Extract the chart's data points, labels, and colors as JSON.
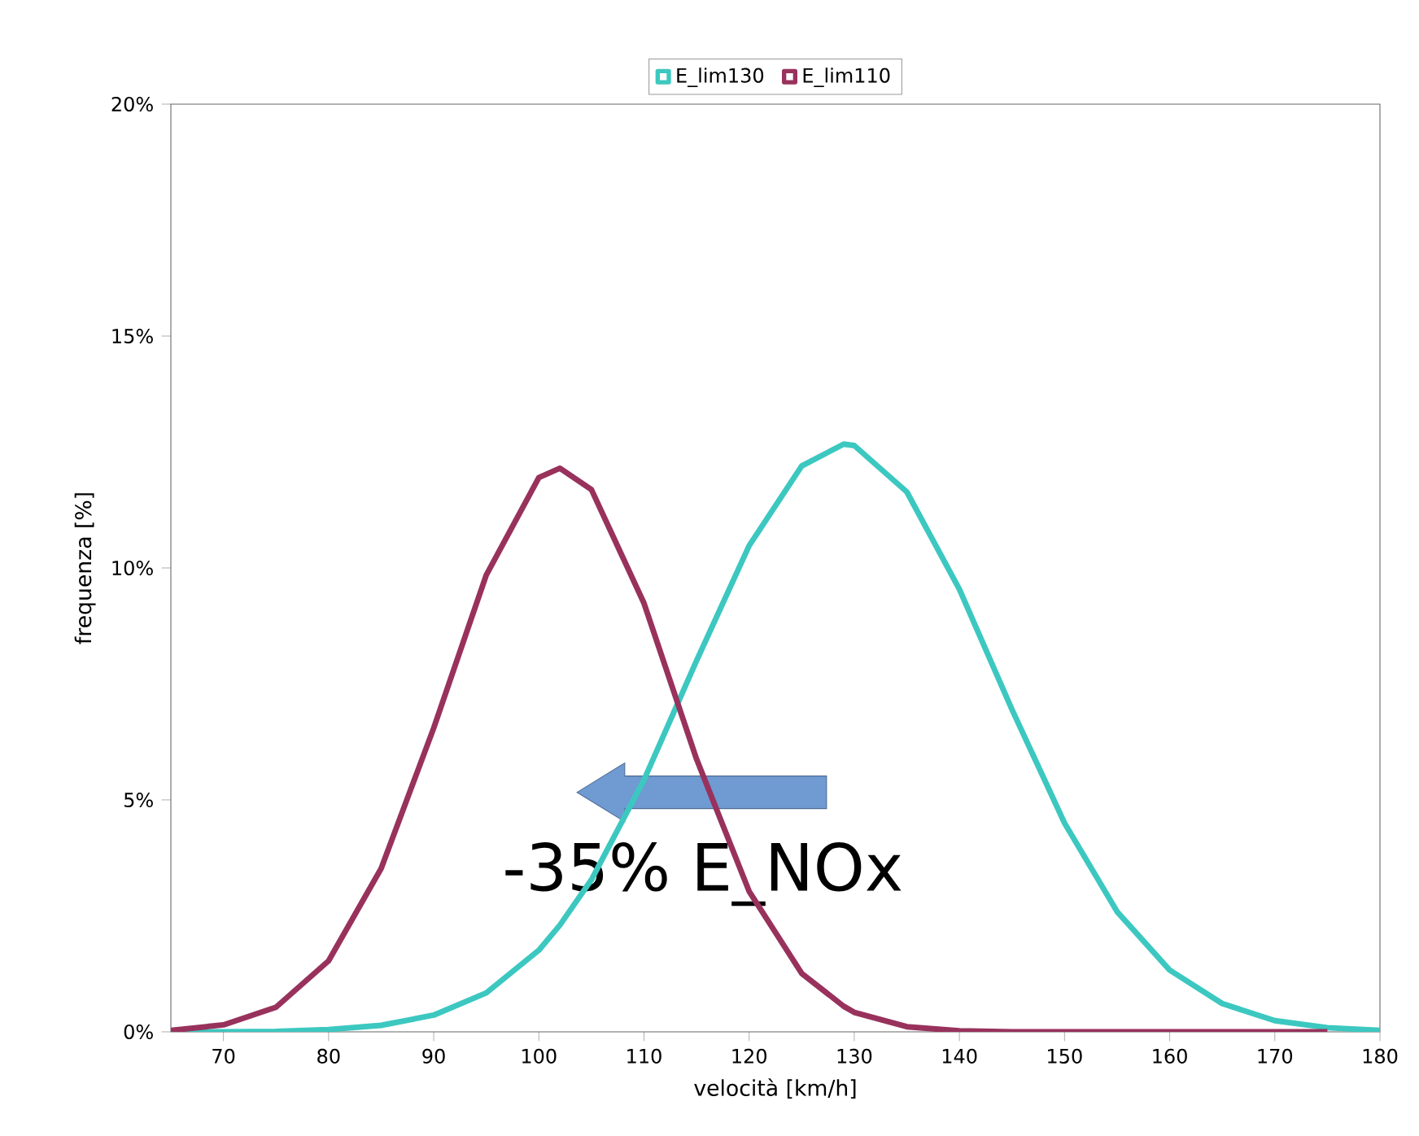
{
  "chart_data": {
    "type": "line",
    "xlabel": "velocità [km/h]",
    "ylabel": "frequenza [%]",
    "x": [
      65,
      70,
      75,
      80,
      85,
      90,
      95,
      100,
      102,
      105,
      110,
      115,
      120,
      125,
      129,
      130,
      135,
      140,
      145,
      150,
      155,
      160,
      165,
      170,
      175,
      180
    ],
    "series": [
      {
        "name": "E_lim130",
        "color": "#3cc8c0",
        "values": [
          0,
          0,
          0.01,
          0.05,
          0.14,
          0.36,
          0.84,
          1.76,
          2.3,
          3.28,
          5.43,
          8.0,
          10.48,
          12.2,
          12.67,
          12.64,
          11.64,
          9.54,
          6.95,
          4.5,
          2.59,
          1.33,
          0.61,
          0.24,
          0.09,
          0.03
        ]
      },
      {
        "name": "E_lim110",
        "color": "#98325c",
        "values": [
          0.03,
          0.15,
          0.53,
          1.53,
          3.52,
          6.55,
          9.85,
          11.95,
          12.15,
          11.69,
          9.24,
          5.88,
          3.03,
          1.26,
          0.55,
          0.42,
          0.11,
          0.02,
          0,
          0,
          0,
          0,
          0,
          0,
          0,
          null
        ]
      }
    ],
    "xlim": [
      65,
      180
    ],
    "ylim": [
      0,
      20
    ],
    "xticks": [
      70,
      80,
      90,
      100,
      110,
      120,
      130,
      140,
      150,
      160,
      170,
      180
    ],
    "yticks": [
      {
        "value": 0,
        "label": "0%"
      },
      {
        "value": 5,
        "label": "5%"
      },
      {
        "value": 10,
        "label": "10%"
      },
      {
        "value": 15,
        "label": "15%"
      },
      {
        "value": 20,
        "label": "20%"
      }
    ],
    "legend": "top",
    "grid": false,
    "marker": "none",
    "line_style": "solid",
    "annotations": [
      "-35% E_NOx"
    ]
  }
}
